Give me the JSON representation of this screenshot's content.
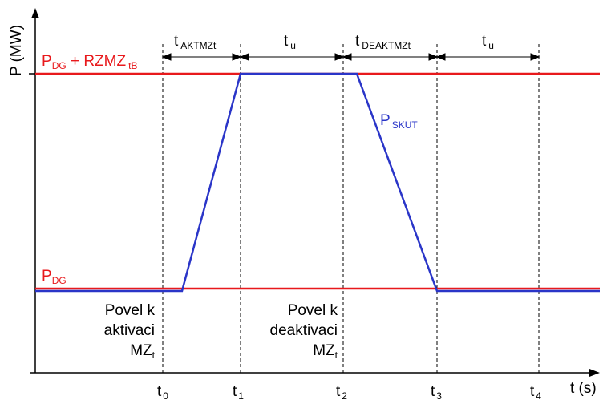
{
  "axes": {
    "y_label": "P (MW)",
    "x_label": "t (s)"
  },
  "levels": {
    "upper": {
      "main": "P",
      "sub1": "DG",
      "mid": " + RZMZ",
      "sub2": "tB"
    },
    "lower": {
      "main": "P",
      "sub": "DG"
    }
  },
  "curve_label": {
    "main": "P",
    "sub": "SKUT"
  },
  "intervals": [
    {
      "main": "t",
      "sub": "AKTMZt"
    },
    {
      "main": "t",
      "sub": "u"
    },
    {
      "main": "t",
      "sub": "DEAKTMZt"
    },
    {
      "main": "t",
      "sub": "u"
    }
  ],
  "ticks": [
    {
      "main": "t",
      "sub": "0"
    },
    {
      "main": "t",
      "sub": "1"
    },
    {
      "main": "t",
      "sub": "2"
    },
    {
      "main": "t",
      "sub": "3"
    },
    {
      "main": "t",
      "sub": "4"
    }
  ],
  "annotations": {
    "activation": {
      "line1": "Povel k",
      "line2": "aktivaci",
      "line3": "MZ",
      "line3_sub": "t"
    },
    "deactivation": {
      "line1": "Povel k",
      "line2": "deaktivaci",
      "line3": "MZ",
      "line3_sub": "t"
    }
  },
  "colors": {
    "axis": "#000000",
    "levels": "#e8191c",
    "curve": "#2a35c8"
  }
}
